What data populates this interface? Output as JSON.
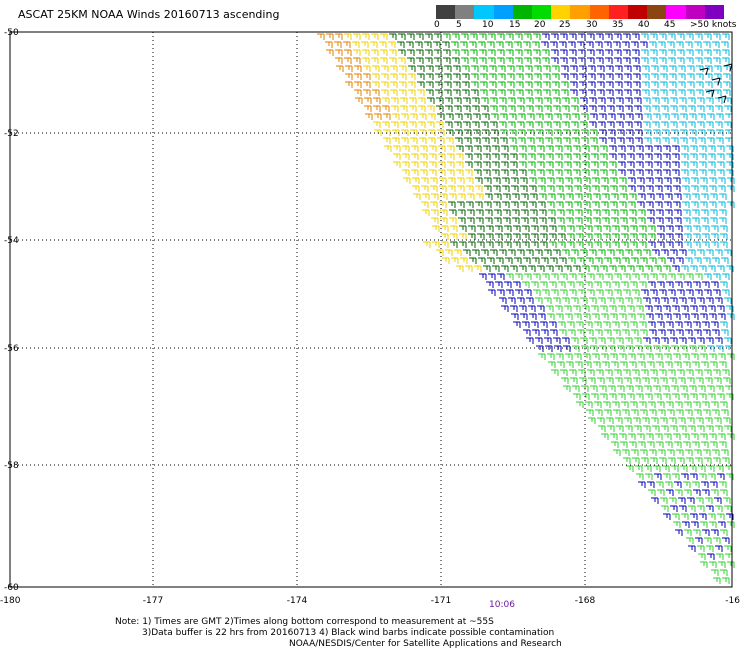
{
  "title": "ASCAT 25KM NOAA Winds 20160713 ascending",
  "legend": {
    "colors": [
      "#404040",
      "#808080",
      "#00c8ff",
      "#00a0ff",
      "#00b400",
      "#00dc00",
      "#ffd200",
      "#ffa000",
      "#ff6400",
      "#ff2020",
      "#c00000",
      "#8b4513",
      "#ff00ff",
      "#c000c0",
      "#8000c0"
    ],
    "labels": [
      "0",
      "5",
      "10",
      "15",
      "20",
      "25",
      "30",
      "35",
      "40",
      "45",
      ">50 knots"
    ]
  },
  "axes": {
    "lat_labels": [
      "-50",
      "-52",
      "-54",
      "-56",
      "-58",
      "-60"
    ],
    "lon_labels": [
      "-180",
      "-177",
      "-174",
      "-171",
      "-168",
      "-16"
    ]
  },
  "time_label": "10:06",
  "notes": {
    "line1": "Note: 1) Times are GMT 2)Times along bottom correspond to measurement at ~55S",
    "line2": "3)Data buffer is 22 hrs from 20160713 4) Black wind barbs indicate possible contamination",
    "line3": "NOAA/NESDIS/Center for Satellite Applications and Research"
  },
  "wind_field": {
    "colors": {
      "orange": "#e08000",
      "yellow": "#f0d000",
      "dark_green": "#006400",
      "green": "#00b400",
      "light_green": "#30d030",
      "blue": "#0000b0",
      "cyan": "#00b8d8"
    }
  }
}
